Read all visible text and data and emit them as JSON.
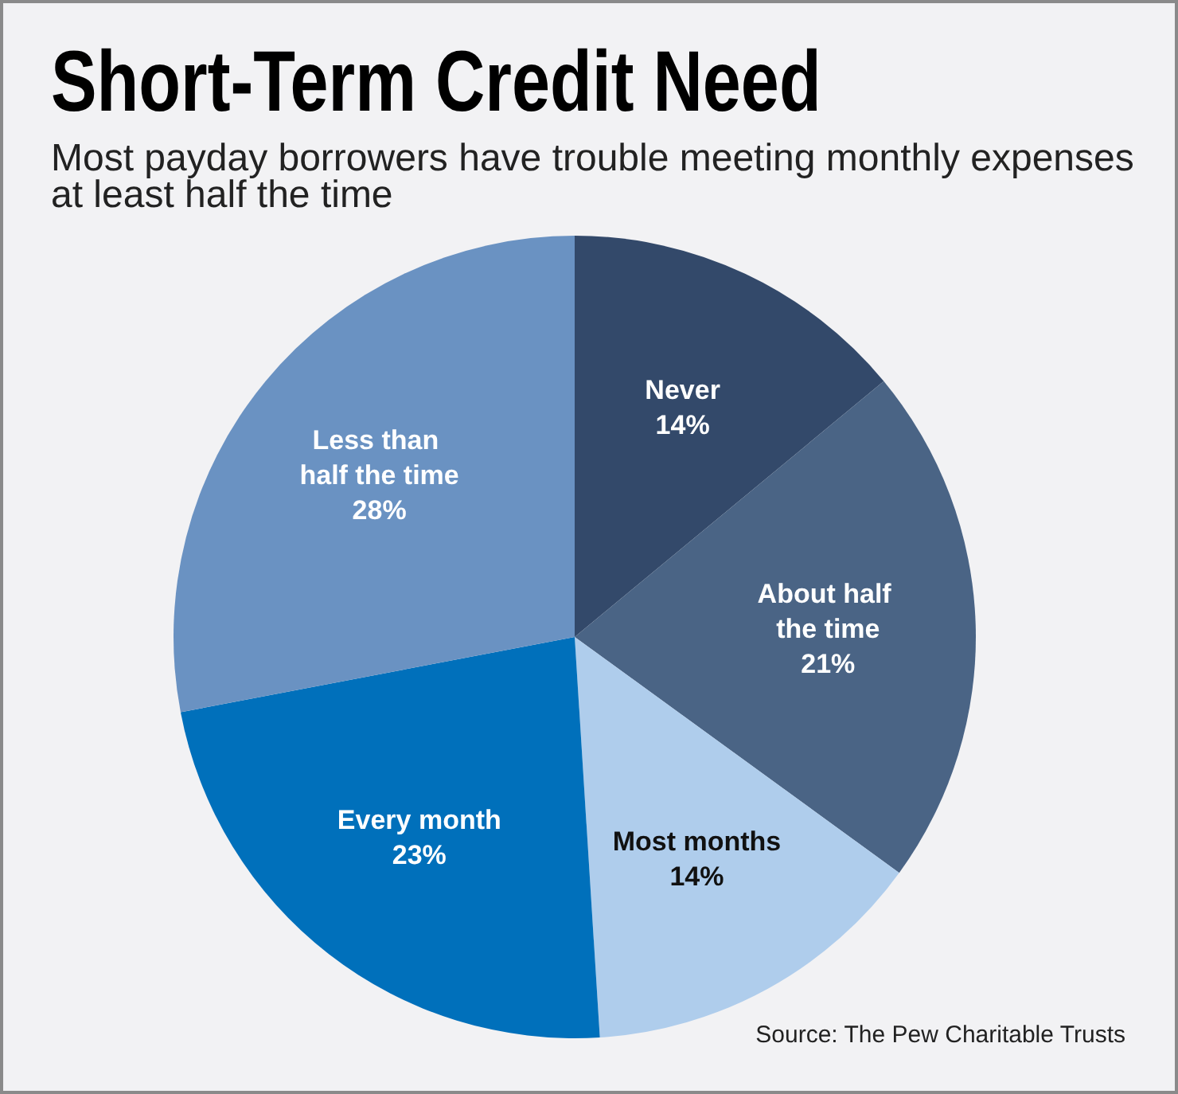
{
  "chart_data": {
    "type": "pie",
    "title": "Short-Term Credit Need",
    "subtitle": "Most payday borrowers have trouble meeting monthly expenses at least half the time",
    "categories": [
      "Never",
      "About half the time",
      "Most months",
      "Every month",
      "Less than half the time"
    ],
    "values": [
      14,
      21,
      14,
      23,
      28
    ],
    "value_labels": [
      "14%",
      "21%",
      "14%",
      "23%",
      "28%"
    ],
    "colors": [
      "#33496a",
      "#4a6485",
      "#afcdec",
      "#0070bb",
      "#6a92c2"
    ],
    "annotations": [
      "Source: The Pew Charitable Trusts"
    ]
  }
}
